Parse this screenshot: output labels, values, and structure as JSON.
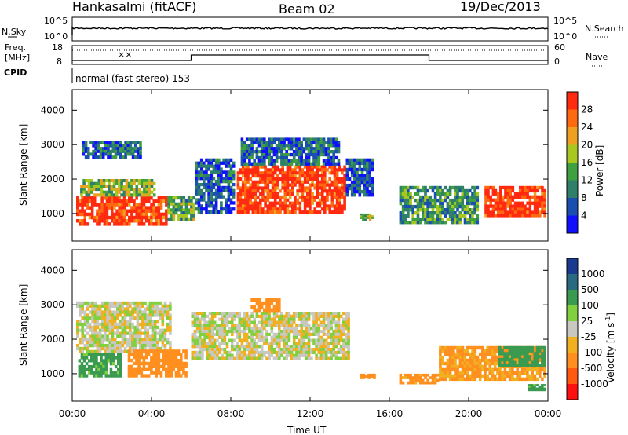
{
  "header": {
    "station": "Hankasalmi (fitACF)",
    "beam": "Beam 02",
    "date": "19/Dec/2013"
  },
  "top_panels": {
    "nsky_label": "N.Sky",
    "nsky_ticks": [
      "10^5",
      "10^0"
    ],
    "nsearch_label": "N.Search",
    "nsearch_ticks": [
      "10^5",
      "10^0"
    ],
    "freq_label_1": "Freq.",
    "freq_label_2": "[MHz]",
    "freq_ticks": [
      "18",
      "8"
    ],
    "nave_label": "Nave",
    "nave_ticks": [
      "60",
      "0"
    ],
    "cpid_label": "CPID",
    "cpid_mode": "normal (fast stereo) 153"
  },
  "colors": {
    "power": [
      "#1010ff",
      "#1a4fb0",
      "#2f7f6a",
      "#3fa040",
      "#a8c820",
      "#f0a020",
      "#ff6a10",
      "#ff2a10"
    ],
    "velocity": [
      "#ff1010",
      "#ff5a10",
      "#ff9020",
      "#f0b020",
      "#c8c8c0",
      "#80d040",
      "#3a9a50",
      "#2a6a80",
      "#1a3a90"
    ],
    "ground_scatter": "#c8c8c0"
  },
  "chart_data": [
    {
      "type": "heatmap",
      "ylabel": "Slant Range [km]",
      "yticks": [
        "4000",
        "3000",
        "2000",
        "1000"
      ],
      "ylim": [
        200,
        4600
      ],
      "colorbar_label": "Power [dB]",
      "colorbar_ticks": [
        "28",
        "24",
        "20",
        "16",
        "12",
        "8",
        "4"
      ],
      "scale": [
        0,
        32
      ],
      "regions": [
        {
          "t": [
            0.2,
            4.8
          ],
          "r": [
            650,
            1500
          ],
          "level": 30
        },
        {
          "t": [
            0.4,
            4.2
          ],
          "r": [
            1500,
            2000
          ],
          "level": 16
        },
        {
          "t": [
            4.8,
            6.2
          ],
          "r": [
            800,
            1500
          ],
          "level": 14
        },
        {
          "t": [
            0.5,
            3.5
          ],
          "r": [
            2600,
            3100
          ],
          "level": 8
        },
        {
          "t": [
            6.2,
            8.2
          ],
          "r": [
            1000,
            2600
          ],
          "level": 6
        },
        {
          "t": [
            8.3,
            13.8
          ],
          "r": [
            1000,
            2400
          ],
          "level": 30
        },
        {
          "t": [
            8.5,
            13.5
          ],
          "r": [
            2400,
            3200
          ],
          "level": 8
        },
        {
          "t": [
            13.8,
            15.2
          ],
          "r": [
            1500,
            2600
          ],
          "level": 6
        },
        {
          "t": [
            14.5,
            15.2
          ],
          "r": [
            800,
            1000
          ],
          "level": 16
        },
        {
          "t": [
            16.5,
            20.5
          ],
          "r": [
            700,
            1800
          ],
          "level": 12
        },
        {
          "t": [
            20.8,
            23.9
          ],
          "r": [
            900,
            1800
          ],
          "level": 30
        }
      ]
    },
    {
      "type": "heatmap",
      "ylabel": "Slant Range [km]",
      "yticks": [
        "4000",
        "3000",
        "2000",
        "1000"
      ],
      "ylim": [
        200,
        4600
      ],
      "colorbar_label": "Velocity [m s",
      "colorbar_label_sup": "-1",
      "colorbar_label_end": "]",
      "colorbar_ticks": [
        "1000",
        "500",
        "100",
        "25",
        "-25",
        "-100",
        "-500",
        "-1000"
      ],
      "regions": [
        {
          "t": [
            0.2,
            5.0
          ],
          "r": [
            1600,
            3100
          ],
          "v": 0
        },
        {
          "t": [
            0.3,
            2.5
          ],
          "r": [
            900,
            1600
          ],
          "v": 150
        },
        {
          "t": [
            2.8,
            5.8
          ],
          "r": [
            900,
            1700
          ],
          "v": -200
        },
        {
          "t": [
            6.0,
            14.0
          ],
          "r": [
            1400,
            2800
          ],
          "v": 0
        },
        {
          "t": [
            9.0,
            10.5
          ],
          "r": [
            2800,
            3200
          ],
          "v": -300
        },
        {
          "t": [
            14.5,
            15.3
          ],
          "r": [
            850,
            1000
          ],
          "v": -200
        },
        {
          "t": [
            16.5,
            18.5
          ],
          "r": [
            700,
            1000
          ],
          "v": -150
        },
        {
          "t": [
            18.5,
            23.9
          ],
          "r": [
            800,
            1800
          ],
          "v": -120
        },
        {
          "t": [
            21.5,
            23.9
          ],
          "r": [
            1200,
            1800
          ],
          "v": 400
        },
        {
          "t": [
            23.0,
            23.9
          ],
          "r": [
            500,
            700
          ],
          "v": 150
        }
      ]
    }
  ],
  "time_axis": {
    "label": "Time UT",
    "ticks": [
      "00:00",
      "04:00",
      "08:00",
      "12:00",
      "16:00",
      "20:00",
      "00:00"
    ],
    "hours": [
      0,
      24
    ]
  },
  "freq_trace": {
    "segments": [
      [
        0,
        6,
        10
      ],
      [
        6,
        18,
        11
      ],
      [
        18,
        24,
        10
      ]
    ],
    "nave": 60
  }
}
